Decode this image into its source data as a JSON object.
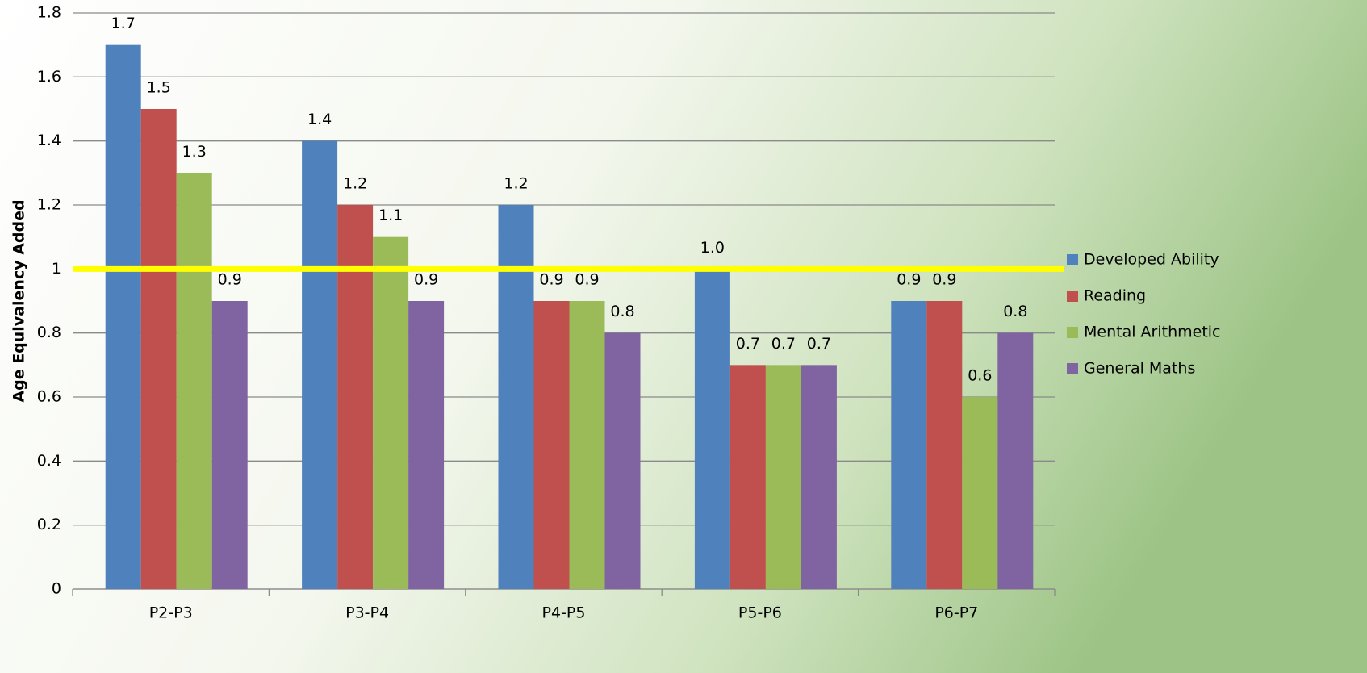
{
  "chart_data": {
    "type": "bar",
    "y_label": "Age Equivalency Added",
    "categories": [
      "P2-P3",
      "P3-P4",
      "P4-P5",
      "P5-P6",
      "P6-P7"
    ],
    "series": [
      {
        "name": "Developed Ability",
        "color": "#4f81bd",
        "values": [
          1.7,
          1.4,
          1.2,
          1.0,
          0.9
        ],
        "value_labels": [
          "1.7",
          "1.4",
          "1.2",
          "1.0",
          "0.9"
        ]
      },
      {
        "name": "Reading",
        "color": "#c0504d",
        "values": [
          1.5,
          1.2,
          0.9,
          0.7,
          0.9
        ],
        "value_labels": [
          "1.5",
          "1.2",
          "0.9",
          "0.7",
          "0.9"
        ]
      },
      {
        "name": "Mental Arithmetic",
        "color": "#9bbb59",
        "values": [
          1.3,
          1.1,
          0.9,
          0.7,
          0.6
        ],
        "value_labels": [
          "1.3",
          "1.1",
          "0.9",
          "0.7",
          "0.6"
        ]
      },
      {
        "name": "General Maths",
        "color": "#8064a2",
        "values": [
          0.9,
          0.9,
          0.8,
          0.7,
          0.8
        ],
        "value_labels": [
          "0.9",
          "0.9",
          "0.8",
          "0.7",
          "0.8"
        ]
      }
    ],
    "ylim": [
      0,
      1.8
    ],
    "yticks": [
      0,
      0.2,
      0.4,
      0.6,
      0.8,
      1,
      1.2,
      1.4,
      1.6,
      1.8
    ],
    "grid": true,
    "reference_line": {
      "value": 1,
      "color": "#ffff00"
    },
    "legend": "right"
  }
}
